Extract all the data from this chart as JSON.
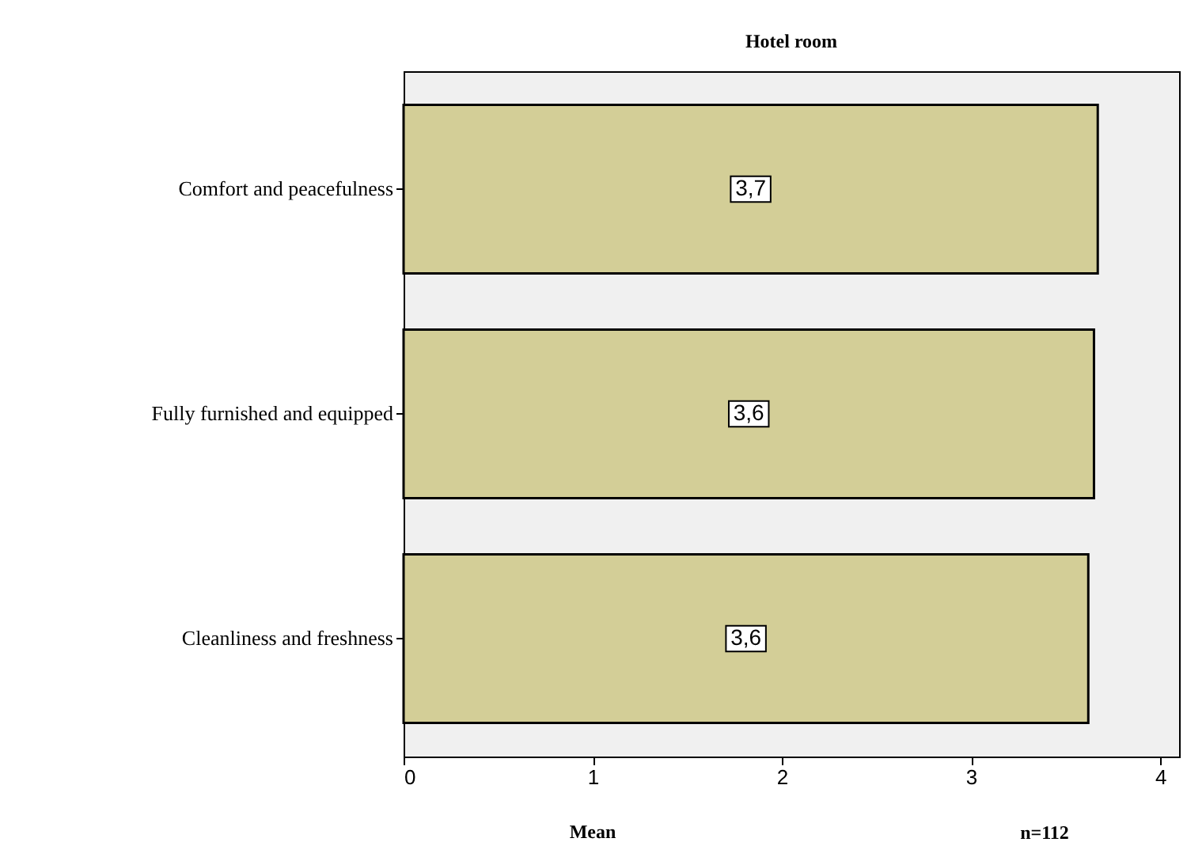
{
  "chart_data": {
    "type": "bar",
    "orientation": "horizontal",
    "title": "Hotel room",
    "xlabel": "Mean",
    "categories": [
      "Comfort and peacefulness",
      "Fully furnished and equipped",
      "Cleanliness and freshness"
    ],
    "values": [
      3.67,
      3.65,
      3.62
    ],
    "color": "#d3ce97",
    "value_labels": [
      "3,7",
      "3,6",
      "3,6"
    ],
    "xlim": [
      0,
      4.1
    ],
    "xticks": [
      0,
      1,
      2,
      3,
      4
    ],
    "grid": false,
    "annotations": [
      "n=112"
    ]
  }
}
